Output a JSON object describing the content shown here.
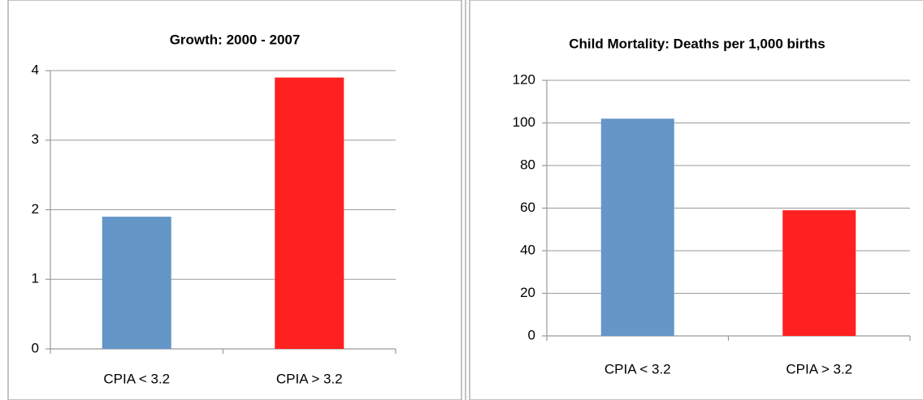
{
  "chart_data": [
    {
      "type": "bar",
      "title": "Growth: 2000 - 2007",
      "categories": [
        "CPIA < 3.2",
        "CPIA > 3.2"
      ],
      "values": [
        1.9,
        3.9
      ],
      "colors": [
        "#6496c8",
        "#ff2020"
      ],
      "ylim": [
        0,
        4
      ],
      "yticks": [
        0,
        1,
        2,
        3,
        4
      ],
      "grid": true
    },
    {
      "type": "bar",
      "title": "Child Mortality: Deaths per 1,000 births",
      "categories": [
        "CPIA < 3.2",
        "CPIA > 3.2"
      ],
      "values": [
        102,
        59
      ],
      "colors": [
        "#6496c8",
        "#ff2020"
      ],
      "ylim": [
        0,
        120
      ],
      "yticks": [
        0,
        20,
        40,
        60,
        80,
        100,
        120
      ],
      "grid": true
    }
  ]
}
